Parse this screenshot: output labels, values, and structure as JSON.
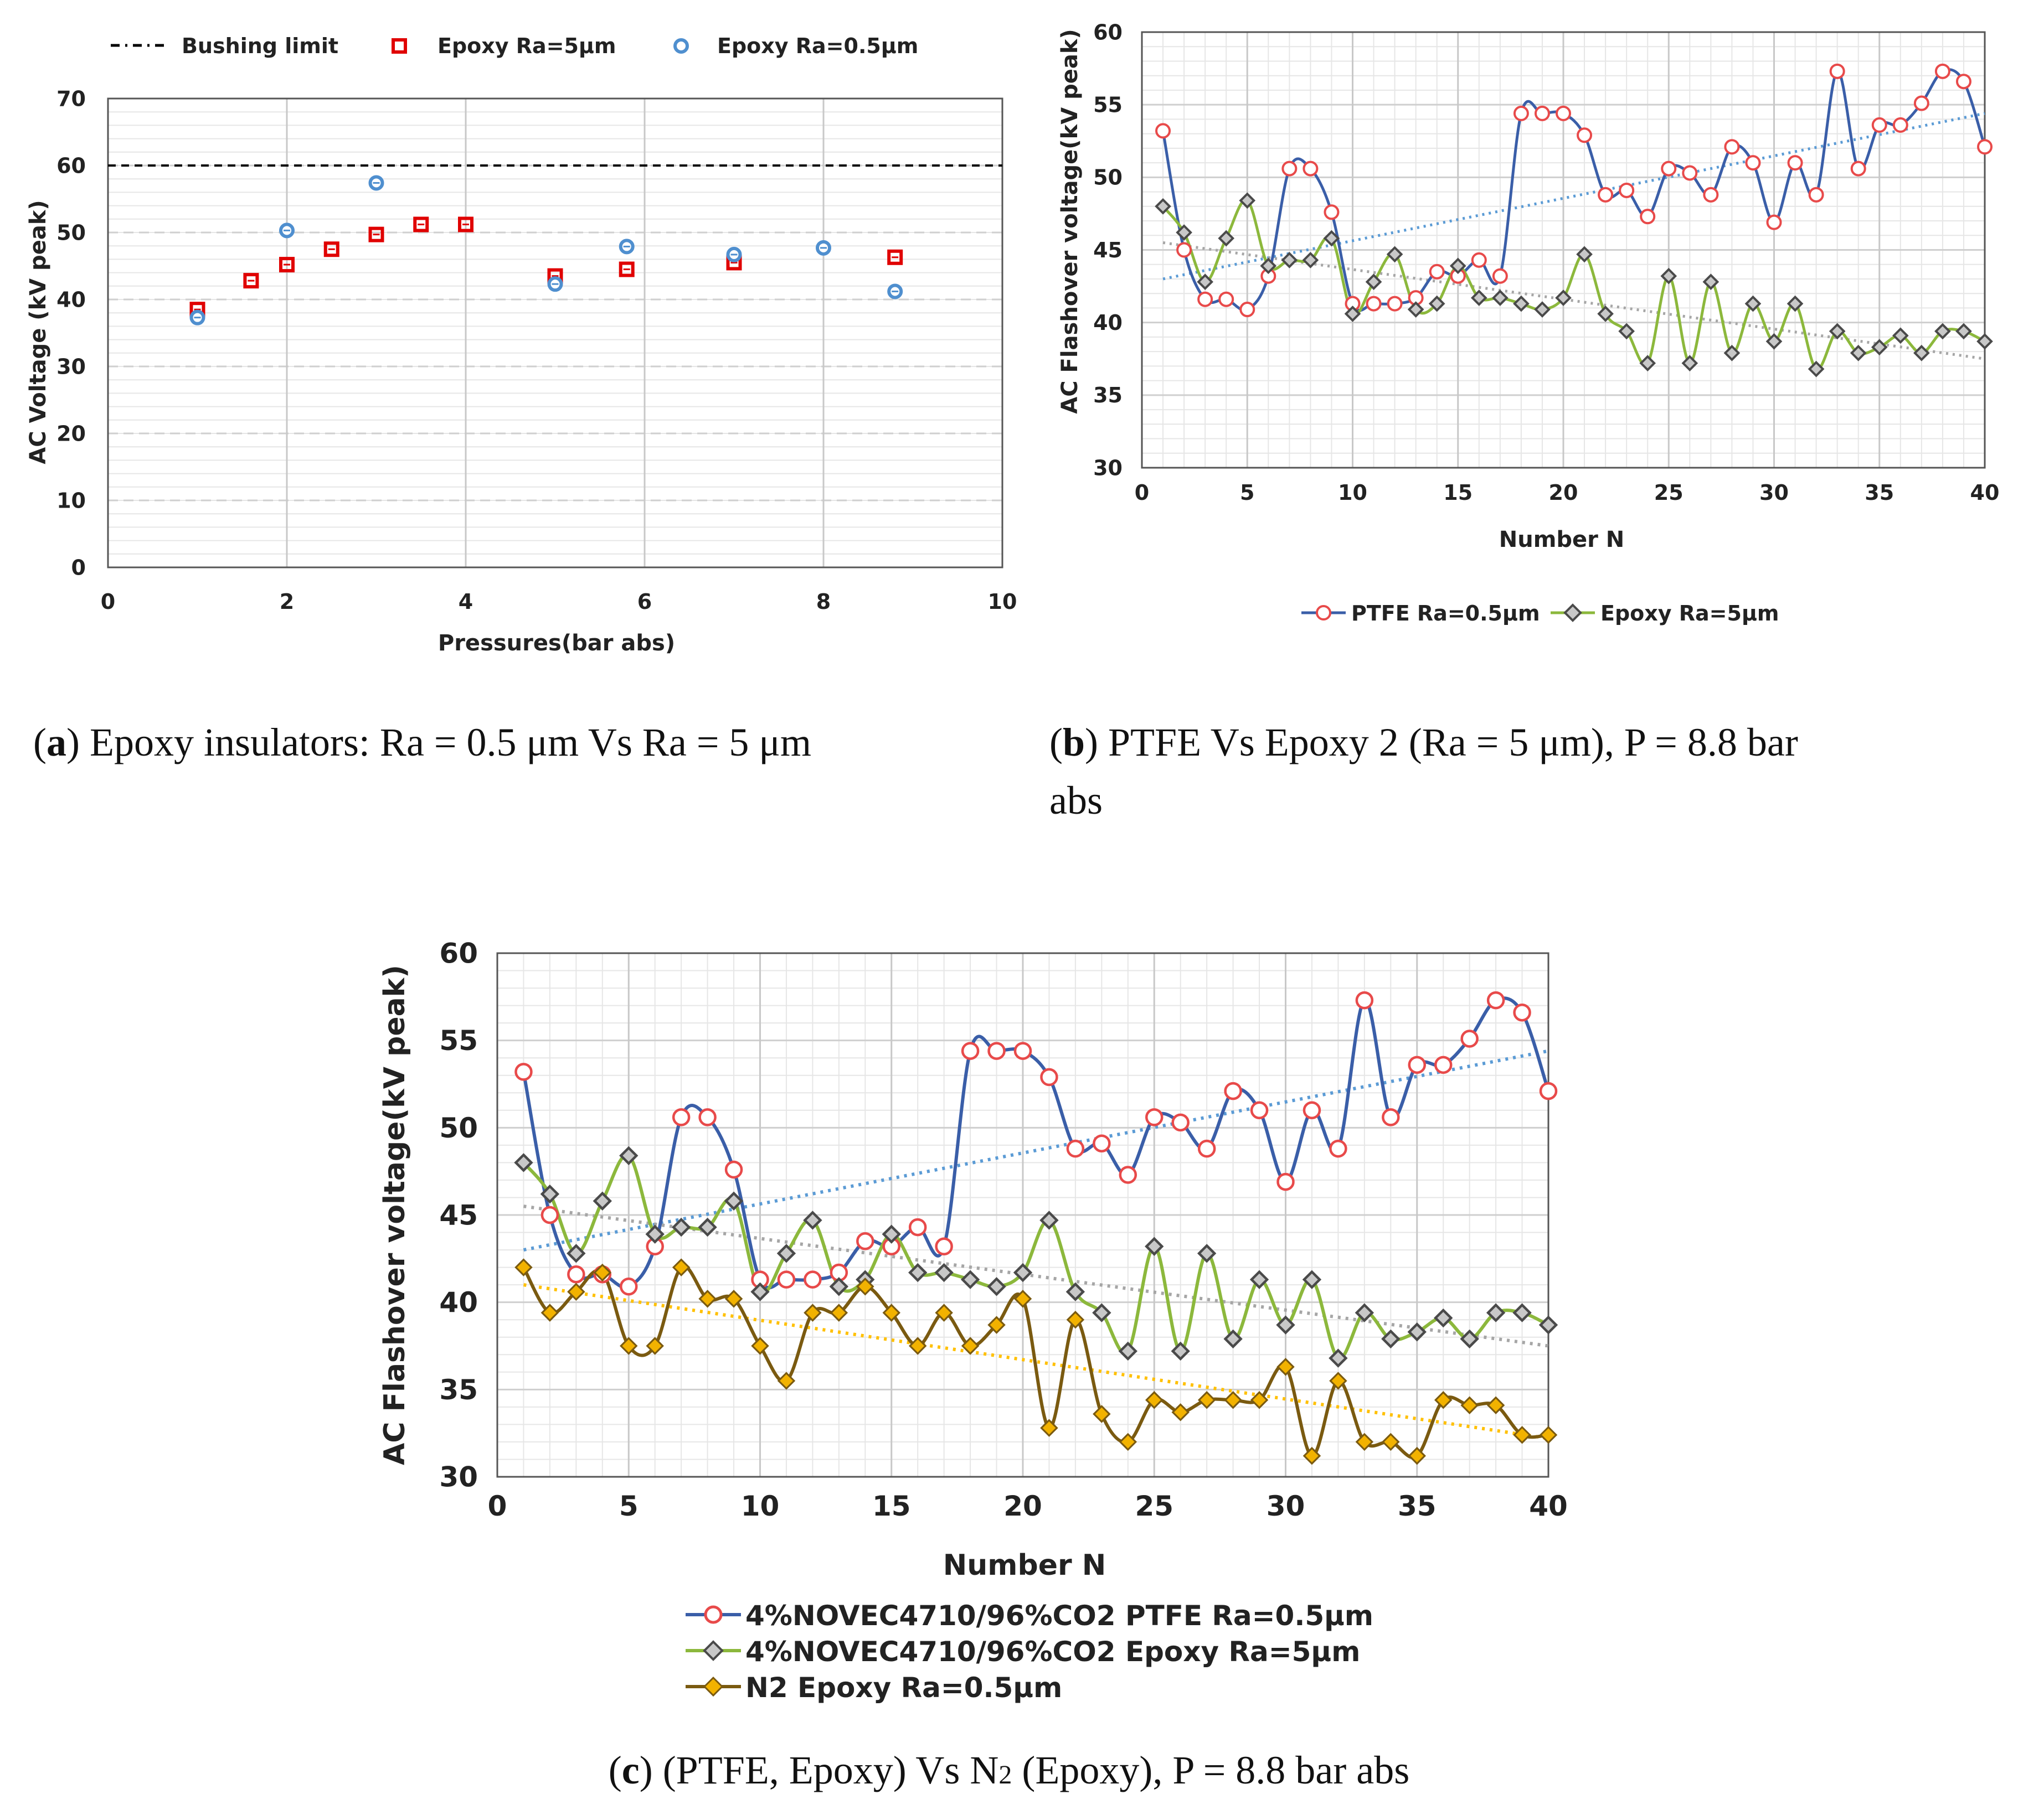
{
  "chart_data": [
    {
      "id": "a",
      "type": "scatter",
      "xlabel": "Pressures(bar abs)",
      "ylabel": "AC Voltage (kV peak)",
      "xlim": [
        0,
        10
      ],
      "ylim": [
        0,
        70
      ],
      "xticks": [
        0,
        2,
        4,
        6,
        8,
        10
      ],
      "yticks": [
        0,
        10,
        20,
        30,
        40,
        50,
        60,
        70
      ],
      "grid": true,
      "legend_position": "top",
      "reference_line": {
        "name": "Bushing limit",
        "y": 60,
        "color": "#000000"
      },
      "series": [
        {
          "name": "Epoxy Ra=5µm",
          "marker": "square",
          "color": "#e00000",
          "x": [
            1,
            1.6,
            2,
            2.5,
            3,
            3.5,
            4,
            5,
            5.8,
            7,
            8.8
          ],
          "y": [
            38.5,
            42.8,
            45.2,
            47.5,
            49.7,
            51.2,
            51.2,
            43.5,
            44.5,
            45.5,
            46.3
          ]
        },
        {
          "name": "Epoxy Ra=0.5µm",
          "marker": "circle",
          "color": "#4f8fcf",
          "x": [
            1,
            2,
            3,
            5,
            5.8,
            7,
            8,
            8.8
          ],
          "y": [
            37.3,
            50.3,
            57.4,
            42.3,
            47.9,
            46.7,
            47.7,
            41.2
          ]
        }
      ],
      "caption_label": "a",
      "caption_text": ") Epoxy insulators: Ra = 0.5 μm Vs Ra = 5 μm"
    },
    {
      "id": "b",
      "type": "line",
      "xlabel": "Number N",
      "ylabel": "AC Flashover voltage(kV peak)",
      "xlim": [
        0,
        40
      ],
      "ylim": [
        30,
        60
      ],
      "xticks": [
        0,
        5,
        10,
        15,
        20,
        25,
        30,
        35,
        40
      ],
      "yticks": [
        30,
        35,
        40,
        45,
        50,
        55,
        60
      ],
      "grid": true,
      "legend_position": "bottom",
      "series": [
        {
          "name": "PTFE Ra=0.5µm",
          "marker": "circle",
          "line_color": "#3a5ea8",
          "marker_color": "#e84a4a",
          "trend": {
            "color": "#5b9bd5",
            "start": 43.0,
            "end": 54.4
          },
          "y": [
            53.2,
            45,
            41.6,
            41.6,
            40.9,
            43.2,
            50.6,
            50.6,
            47.6,
            41.3,
            41.3,
            41.3,
            41.7,
            43.5,
            43.2,
            44.3,
            43.2,
            54.4,
            54.4,
            54.4,
            52.9,
            48.8,
            49.1,
            47.3,
            50.6,
            50.3,
            48.8,
            52.1,
            51,
            46.9,
            51,
            48.8,
            57.3,
            50.6,
            53.6,
            53.6,
            55.1,
            57.3,
            56.6,
            52.1
          ]
        },
        {
          "name": "Epoxy Ra=5µm",
          "marker": "diamond",
          "line_color": "#8cb83c",
          "marker_color": "#4a4a4a",
          "trend": {
            "color": "#a6a6a6",
            "start": 45.5,
            "end": 37.5
          },
          "y": [
            48,
            46.2,
            42.8,
            45.8,
            48.4,
            43.9,
            44.3,
            44.3,
            45.8,
            40.6,
            42.8,
            44.7,
            40.9,
            41.3,
            43.9,
            41.7,
            41.7,
            41.3,
            40.9,
            41.7,
            44.7,
            40.6,
            39.4,
            37.2,
            43.2,
            37.2,
            42.8,
            37.9,
            41.3,
            38.7,
            41.3,
            36.8,
            39.4,
            37.9,
            38.3,
            39.1,
            37.9,
            39.4,
            39.4,
            38.7
          ]
        }
      ],
      "caption_label": "b",
      "caption_line1": ") PTFE Vs Epoxy 2 (Ra = 5 μm), P = 8.8 bar",
      "caption_line2": "abs"
    },
    {
      "id": "c",
      "type": "line",
      "xlabel": "Number N",
      "ylabel": "AC Flashover voltage(kV peak)",
      "xlim": [
        0,
        40
      ],
      "ylim": [
        30,
        60
      ],
      "xticks": [
        0,
        5,
        10,
        15,
        20,
        25,
        30,
        35,
        40
      ],
      "yticks": [
        30,
        35,
        40,
        45,
        50,
        55,
        60
      ],
      "grid": true,
      "legend_position": "bottom",
      "series": [
        {
          "name": "4%NOVEC4710/96%CO2 PTFE Ra=0.5µm",
          "marker": "circle",
          "line_color": "#3a5ea8",
          "marker_color": "#e84a4a",
          "trend": {
            "color": "#5b9bd5",
            "start": 43.0,
            "end": 54.4
          },
          "y": [
            53.2,
            45,
            41.6,
            41.6,
            40.9,
            43.2,
            50.6,
            50.6,
            47.6,
            41.3,
            41.3,
            41.3,
            41.7,
            43.5,
            43.2,
            44.3,
            43.2,
            54.4,
            54.4,
            54.4,
            52.9,
            48.8,
            49.1,
            47.3,
            50.6,
            50.3,
            48.8,
            52.1,
            51,
            46.9,
            51,
            48.8,
            57.3,
            50.6,
            53.6,
            53.6,
            55.1,
            57.3,
            56.6,
            52.1
          ]
        },
        {
          "name": "4%NOVEC4710/96%CO2 Epoxy Ra=5µm",
          "marker": "diamond",
          "line_color": "#8cb83c",
          "marker_color": "#4a4a4a",
          "trend": {
            "color": "#a6a6a6",
            "start": 45.5,
            "end": 37.5
          },
          "y": [
            48,
            46.2,
            42.8,
            45.8,
            48.4,
            43.9,
            44.3,
            44.3,
            45.8,
            40.6,
            42.8,
            44.7,
            40.9,
            41.3,
            43.9,
            41.7,
            41.7,
            41.3,
            40.9,
            41.7,
            44.7,
            40.6,
            39.4,
            37.2,
            43.2,
            37.2,
            42.8,
            37.9,
            41.3,
            38.7,
            41.3,
            36.8,
            39.4,
            37.9,
            38.3,
            39.1,
            37.9,
            39.4,
            39.4,
            38.7
          ]
        },
        {
          "name": "N2 Epoxy Ra=0.5µm",
          "marker": "diamond-filled",
          "line_color": "#7a5a10",
          "marker_color": "#f2b200",
          "trend": {
            "color": "#ffc000",
            "start": 41.0,
            "end": 32.2
          },
          "y": [
            42,
            39.4,
            40.6,
            41.7,
            37.5,
            37.5,
            42,
            40.2,
            40.2,
            37.5,
            35.5,
            39.4,
            39.4,
            40.9,
            39.4,
            37.5,
            39.4,
            37.5,
            38.7,
            40.2,
            32.8,
            39,
            33.6,
            32,
            34.4,
            33.7,
            34.4,
            34.4,
            34.4,
            36.3,
            31.2,
            35.5,
            32,
            32,
            31.2,
            34.4,
            34.1,
            34.1,
            32.4,
            32.4
          ]
        }
      ],
      "caption_label": "c",
      "caption_pre": ") (PTFE, Epoxy) Vs N",
      "caption_sub": "2",
      "caption_post": " (Epoxy), P = 8.8 bar abs"
    }
  ]
}
